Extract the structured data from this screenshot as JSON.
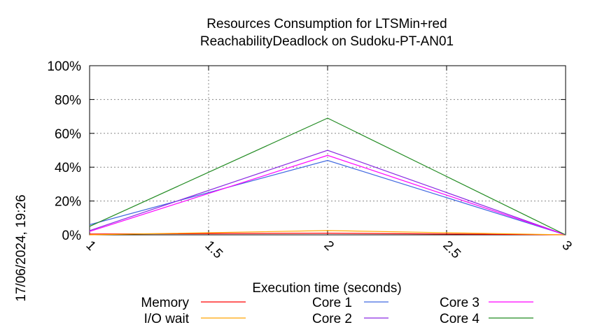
{
  "chart_data": {
    "type": "line",
    "title_line1": "Resources Consumption for LTSMin+red",
    "title_line2": "ReachabilityDeadlock on Sudoku-PT-AN01",
    "xlabel": "Execution time (seconds)",
    "ylabel": "",
    "side_label": "17/06/2024, 19:26",
    "xlim": [
      1,
      3
    ],
    "ylim": [
      0,
      100
    ],
    "x_ticks": [
      "1",
      "1.5",
      "2",
      "2.5",
      "3"
    ],
    "x_tick_values": [
      1,
      1.5,
      2,
      2.5,
      3
    ],
    "y_ticks": [
      "0%",
      "20%",
      "40%",
      "60%",
      "80%",
      "100%"
    ],
    "y_tick_values": [
      0,
      20,
      40,
      60,
      80,
      100
    ],
    "grid": true,
    "legend_position": "bottom",
    "series": [
      {
        "name": "Memory",
        "color": "#ff0000",
        "x": [
          1,
          2,
          3
        ],
        "y": [
          0.5,
          1,
          0
        ]
      },
      {
        "name": "I/O wait",
        "color": "#ffa500",
        "x": [
          1,
          2,
          3
        ],
        "y": [
          0,
          2.5,
          0
        ]
      },
      {
        "name": "Core 1",
        "color": "#4169e1",
        "x": [
          1,
          2,
          3
        ],
        "y": [
          6,
          44,
          0
        ]
      },
      {
        "name": "Core 2",
        "color": "#8a2be2",
        "x": [
          1,
          2,
          3
        ],
        "y": [
          2.5,
          50,
          0
        ]
      },
      {
        "name": "Core 3",
        "color": "#ff00ff",
        "x": [
          1,
          2,
          3
        ],
        "y": [
          2,
          47,
          0
        ]
      },
      {
        "name": "Core 4",
        "color": "#228b22",
        "x": [
          1,
          2,
          3
        ],
        "y": [
          5,
          69,
          0
        ]
      }
    ]
  }
}
